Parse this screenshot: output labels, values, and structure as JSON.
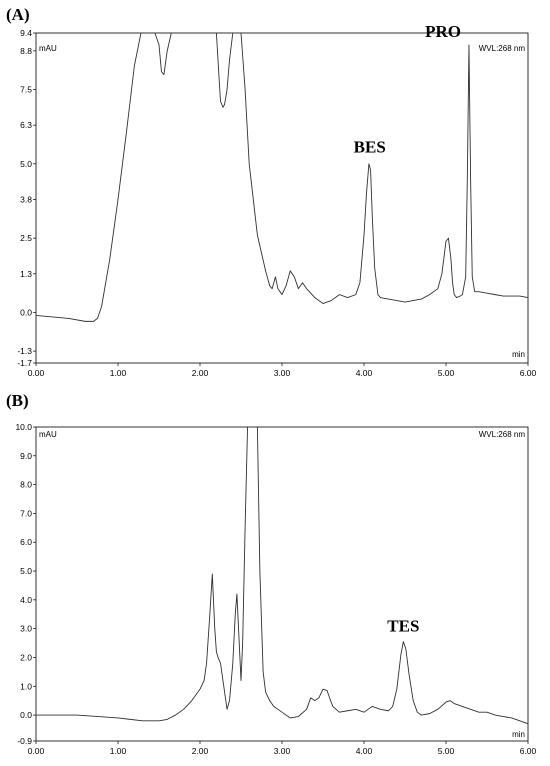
{
  "chart_data": [
    {
      "panel_label": "(A)",
      "type": "line",
      "ylabel": "mAU",
      "xlabel": "min",
      "annotation": "WVL:268 nm",
      "xlim": [
        0,
        6
      ],
      "ylim": [
        -1.7,
        9.4
      ],
      "x_ticks": [
        "0.00",
        "1.00",
        "2.00",
        "3.00",
        "4.00",
        "5.00",
        "6.00"
      ],
      "y_ticks": [
        9.4,
        8.8,
        7.5,
        6.3,
        5.0,
        3.8,
        2.5,
        1.3,
        0.0,
        -1.3,
        -1.7
      ],
      "y_tick_labels": [
        "9.4",
        "8.8",
        "7.5",
        "6.3",
        "5.0",
        "3.8",
        "2.5",
        "1.3",
        "0.0",
        "-1.3",
        "-1.7"
      ],
      "peak_labels": [
        {
          "text": "BES",
          "x": 4.07,
          "y": 5.05
        },
        {
          "text": "PRO",
          "x": 5.28,
          "y": 9.0
        }
      ],
      "series": [
        {
          "x": [
            0.0,
            0.2,
            0.4,
            0.6,
            0.7,
            0.75,
            0.8,
            0.9,
            1.0,
            1.1,
            1.2,
            1.28,
            1.32,
            1.45,
            1.5,
            1.53,
            1.56,
            1.6,
            1.65,
            1.7,
            2.0,
            2.2,
            2.23,
            2.25,
            2.28,
            2.3,
            2.33,
            2.36,
            2.4,
            2.45,
            2.5,
            2.55,
            2.6,
            2.7,
            2.8,
            2.85,
            2.88,
            2.92,
            2.95,
            3.0,
            3.05,
            3.1,
            3.15,
            3.2,
            3.25,
            3.3,
            3.4,
            3.5,
            3.6,
            3.7,
            3.8,
            3.9,
            3.95,
            4.0,
            4.03,
            4.06,
            4.08,
            4.1,
            4.13,
            4.17,
            4.2,
            4.3,
            4.4,
            4.5,
            4.6,
            4.7,
            4.8,
            4.9,
            4.95,
            5.0,
            5.03,
            5.06,
            5.08,
            5.1,
            5.13,
            5.17,
            5.2,
            5.24,
            5.26,
            5.28,
            5.3,
            5.32,
            5.35,
            5.4,
            5.5,
            5.6,
            5.7,
            5.8,
            5.9,
            6.0
          ],
          "y": [
            -0.1,
            -0.15,
            -0.2,
            -0.3,
            -0.3,
            -0.2,
            0.2,
            1.8,
            3.8,
            6.0,
            8.3,
            9.4,
            9.4,
            9.4,
            9.0,
            8.1,
            8.0,
            8.8,
            9.4,
            9.4,
            9.4,
            9.4,
            8.0,
            7.1,
            6.9,
            7.0,
            7.5,
            8.5,
            9.4,
            9.4,
            9.4,
            7.5,
            5.0,
            2.6,
            1.4,
            0.9,
            0.8,
            1.2,
            0.8,
            0.6,
            0.9,
            1.4,
            1.2,
            0.8,
            1.0,
            0.8,
            0.5,
            0.3,
            0.4,
            0.6,
            0.5,
            0.6,
            1.0,
            2.6,
            4.0,
            5.0,
            4.8,
            3.3,
            1.5,
            0.6,
            0.5,
            0.45,
            0.4,
            0.35,
            0.4,
            0.45,
            0.6,
            0.8,
            1.3,
            2.4,
            2.5,
            1.8,
            1.0,
            0.6,
            0.5,
            0.55,
            0.6,
            1.2,
            4.5,
            9.0,
            4.5,
            1.2,
            0.7,
            0.7,
            0.65,
            0.6,
            0.55,
            0.55,
            0.55,
            0.5
          ]
        }
      ]
    },
    {
      "panel_label": "(B)",
      "type": "line",
      "ylabel": "mAU",
      "xlabel": "min",
      "annotation": "WVL:268 nm",
      "xlim": [
        0,
        6
      ],
      "ylim": [
        -0.9,
        10.0
      ],
      "x_ticks": [
        "0.00",
        "1.00",
        "2.00",
        "3.00",
        "4.00",
        "5.00",
        "6.00"
      ],
      "y_ticks": [
        10.0,
        9.0,
        8.0,
        7.0,
        6.0,
        5.0,
        4.0,
        3.0,
        2.0,
        1.0,
        0.0,
        -0.9
      ],
      "y_tick_labels": [
        "10.0",
        "9.0",
        "8.0",
        "7.0",
        "6.0",
        "5.0",
        "4.0",
        "3.0",
        "2.0",
        "1.0",
        "0.0",
        "-0.9"
      ],
      "peak_labels": [
        {
          "text": "TES",
          "x": 4.48,
          "y": 2.55
        }
      ],
      "series": [
        {
          "x": [
            0.0,
            0.5,
            1.0,
            1.3,
            1.5,
            1.6,
            1.7,
            1.8,
            1.9,
            2.0,
            2.05,
            2.08,
            2.12,
            2.15,
            2.18,
            2.2,
            2.22,
            2.25,
            2.3,
            2.33,
            2.36,
            2.4,
            2.43,
            2.45,
            2.47,
            2.5,
            2.52,
            2.55,
            2.58,
            2.62,
            2.65,
            2.7,
            2.73,
            2.77,
            2.8,
            2.85,
            2.9,
            3.0,
            3.1,
            3.2,
            3.3,
            3.35,
            3.4,
            3.45,
            3.5,
            3.55,
            3.58,
            3.62,
            3.7,
            3.8,
            3.9,
            4.0,
            4.05,
            4.1,
            4.2,
            4.3,
            4.35,
            4.4,
            4.45,
            4.48,
            4.51,
            4.55,
            4.6,
            4.65,
            4.7,
            4.8,
            4.9,
            5.0,
            5.05,
            5.1,
            5.2,
            5.3,
            5.4,
            5.5,
            5.6,
            5.7,
            5.8,
            5.9,
            6.0
          ],
          "y": [
            0.0,
            0.0,
            -0.1,
            -0.2,
            -0.2,
            -0.15,
            0.0,
            0.2,
            0.5,
            0.9,
            1.2,
            1.8,
            3.5,
            4.9,
            3.0,
            2.2,
            2.0,
            1.8,
            0.8,
            0.2,
            0.5,
            1.8,
            3.5,
            4.2,
            3.0,
            1.2,
            2.5,
            6.5,
            10.0,
            10.0,
            10.0,
            10.0,
            5.0,
            1.5,
            0.8,
            0.5,
            0.3,
            0.1,
            -0.1,
            -0.05,
            0.2,
            0.6,
            0.5,
            0.6,
            0.9,
            0.85,
            0.6,
            0.3,
            0.1,
            0.15,
            0.2,
            0.1,
            0.2,
            0.3,
            0.2,
            0.15,
            0.3,
            0.9,
            2.1,
            2.55,
            2.3,
            1.4,
            0.5,
            0.1,
            0.0,
            0.05,
            0.2,
            0.45,
            0.5,
            0.4,
            0.3,
            0.2,
            0.1,
            0.1,
            0.0,
            -0.05,
            -0.1,
            -0.2,
            -0.3
          ]
        }
      ]
    }
  ]
}
